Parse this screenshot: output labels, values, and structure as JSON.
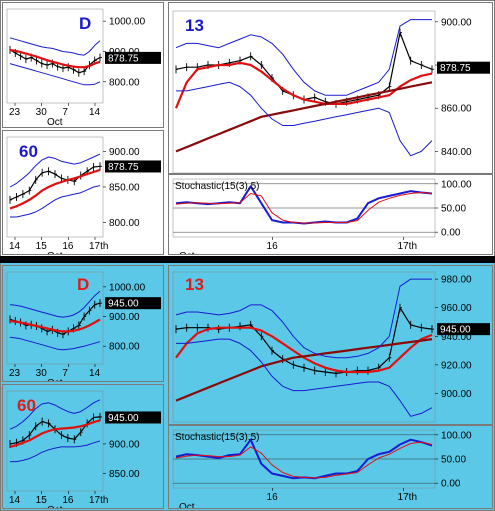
{
  "colors": {
    "top_bg": "#ffffff",
    "bottom_bg": "#5ac8e6",
    "divider": "#000000",
    "title_top": "#1a1acc",
    "title_bottom": "#e41a1a",
    "band": "#1a1ad0",
    "price": "#000000",
    "ma_red": "#e01010",
    "ma_dark": "#8a0a0a",
    "stoch_k": "#1a1ad0",
    "stoch_d": "#e01010"
  },
  "chart_data": [
    {
      "id": "top-daily",
      "type": "line",
      "title": "D",
      "y_ticks": [
        "1000.00",
        "900.00",
        "800.00"
      ],
      "ylim": [
        730,
        1040
      ],
      "x_ticks": [
        "23",
        "30",
        "7",
        "14"
      ],
      "x_sublabel": "Oct",
      "last_value": "878.75",
      "series": [
        {
          "role": "price",
          "values": [
            905,
            895,
            885,
            875,
            880,
            870,
            860,
            855,
            860,
            850,
            845,
            848,
            840,
            830,
            835,
            855,
            870,
            880
          ]
        },
        {
          "role": "ma",
          "values": [
            905,
            902,
            898,
            893,
            888,
            883,
            877,
            871,
            866,
            862,
            857,
            853,
            850,
            848,
            848,
            852,
            860,
            866
          ]
        },
        {
          "role": "band_upper",
          "values": [
            945,
            940,
            935,
            930,
            925,
            920,
            915,
            912,
            910,
            905,
            900,
            898,
            895,
            890,
            888,
            900,
            920,
            935
          ]
        },
        {
          "role": "band_lower",
          "values": [
            860,
            855,
            850,
            845,
            840,
            835,
            830,
            825,
            820,
            815,
            810,
            805,
            800,
            795,
            790,
            790,
            792,
            800
          ]
        }
      ]
    },
    {
      "id": "top-60",
      "type": "line",
      "title": "60",
      "y_ticks": [
        "900.00",
        "850.00",
        "800.00"
      ],
      "ylim": [
        780,
        920
      ],
      "x_ticks": [
        "14",
        "15",
        "16",
        "17th"
      ],
      "x_sublabel": "Oct",
      "last_value": "878.75",
      "series": [
        {
          "role": "price",
          "values": [
            832,
            836,
            840,
            845,
            860,
            870,
            872,
            868,
            862,
            860,
            858,
            866,
            872,
            878,
            879
          ]
        },
        {
          "role": "ma",
          "values": [
            820,
            823,
            827,
            832,
            838,
            845,
            850,
            854,
            857,
            860,
            862,
            865,
            868,
            871,
            874
          ]
        },
        {
          "role": "band_upper",
          "values": [
            850,
            855,
            862,
            870,
            880,
            888,
            892,
            890,
            886,
            884,
            882,
            884,
            888,
            892,
            896
          ]
        },
        {
          "role": "band_lower",
          "values": [
            808,
            808,
            810,
            812,
            815,
            820,
            826,
            832,
            836,
            838,
            840,
            842,
            846,
            850,
            852
          ]
        }
      ]
    },
    {
      "id": "top-13",
      "type": "line",
      "title": "13",
      "y_ticks": [
        "900.00",
        "880.00",
        "860.00",
        "840.00"
      ],
      "ylim": [
        830,
        905
      ],
      "x_ticks": [
        "16",
        "17th"
      ],
      "x_sublabel": "Oct",
      "last_value": "878.75",
      "series": [
        {
          "role": "price",
          "values": [
            878,
            879,
            879,
            880,
            880,
            881,
            882,
            884,
            880,
            874,
            868,
            866,
            864,
            865,
            863,
            862,
            863,
            864,
            865,
            866,
            870,
            895,
            882,
            880,
            878
          ]
        },
        {
          "role": "ma",
          "values": [
            860,
            872,
            878,
            879,
            880,
            880,
            881,
            880,
            877,
            873,
            869,
            866,
            864,
            863,
            862,
            862,
            862,
            863,
            864,
            865,
            866,
            870,
            873,
            875,
            876
          ]
        },
        {
          "role": "ma_long",
          "values": [
            840,
            842,
            844,
            846,
            848,
            850,
            852,
            854,
            856,
            857,
            858,
            859,
            860,
            861,
            862,
            863,
            864,
            865,
            866,
            867,
            868,
            869,
            870,
            871,
            872
          ]
        },
        {
          "role": "band_upper",
          "values": [
            888,
            890,
            890,
            889,
            888,
            890,
            892,
            894,
            893,
            890,
            885,
            878,
            872,
            868,
            866,
            866,
            866,
            868,
            870,
            872,
            878,
            898,
            901,
            901,
            901
          ]
        },
        {
          "role": "band_lower",
          "values": [
            868,
            868,
            869,
            870,
            871,
            872,
            870,
            866,
            860,
            855,
            852,
            852,
            853,
            854,
            855,
            856,
            857,
            858,
            859,
            860,
            858,
            845,
            838,
            840,
            845
          ]
        }
      ]
    },
    {
      "id": "top-stoch",
      "type": "line",
      "title": "Stochastic(15(3),5)",
      "y_ticks": [
        "100.00",
        "50.00",
        "0.00"
      ],
      "ylim": [
        -10,
        110
      ],
      "x_ticks": [
        "16",
        "17th"
      ],
      "x_sublabel": "Oct",
      "series": [
        {
          "role": "stoch_k",
          "values": [
            60,
            62,
            60,
            58,
            60,
            62,
            60,
            95,
            60,
            25,
            20,
            20,
            18,
            20,
            22,
            20,
            20,
            28,
            60,
            70,
            75,
            80,
            85,
            82,
            80
          ]
        },
        {
          "role": "stoch_d",
          "values": [
            58,
            60,
            61,
            60,
            59,
            60,
            61,
            80,
            75,
            40,
            25,
            20,
            19,
            19,
            20,
            20,
            20,
            24,
            45,
            62,
            70,
            76,
            80,
            82,
            80
          ]
        }
      ]
    },
    {
      "id": "bot-daily",
      "type": "line",
      "title": "D",
      "y_ticks": [
        "1000.00",
        "900.00",
        "800.00"
      ],
      "ylim": [
        740,
        1050
      ],
      "x_ticks": [
        "23",
        "30",
        "7",
        "14"
      ],
      "x_sublabel": "Oct",
      "last_value": "945.00",
      "series": [
        {
          "role": "price",
          "values": [
            890,
            885,
            880,
            870,
            872,
            868,
            860,
            850,
            855,
            845,
            840,
            850,
            860,
            870,
            900,
            920,
            940,
            945
          ]
        },
        {
          "role": "ma",
          "values": [
            885,
            883,
            880,
            876,
            872,
            868,
            864,
            860,
            856,
            852,
            850,
            850,
            852,
            856,
            862,
            870,
            880,
            890
          ]
        },
        {
          "role": "band_upper",
          "values": [
            940,
            938,
            935,
            930,
            925,
            920,
            915,
            910,
            905,
            900,
            898,
            900,
            905,
            915,
            930,
            950,
            970,
            985
          ]
        },
        {
          "role": "band_lower",
          "values": [
            830,
            828,
            825,
            820,
            815,
            810,
            805,
            800,
            795,
            790,
            788,
            790,
            792,
            796,
            800,
            805,
            810,
            815
          ]
        }
      ]
    },
    {
      "id": "bot-60",
      "type": "line",
      "title": "60",
      "y_ticks": [
        "900.00",
        "850.00"
      ],
      "ylim": [
        820,
        990
      ],
      "x_ticks": [
        "14",
        "15",
        "16",
        "17th"
      ],
      "x_sublabel": "Oct",
      "last_value": "945.00",
      "series": [
        {
          "role": "price",
          "values": [
            900,
            902,
            906,
            915,
            930,
            938,
            935,
            925,
            915,
            910,
            908,
            920,
            935,
            945,
            946
          ]
        },
        {
          "role": "ma",
          "values": [
            895,
            898,
            902,
            906,
            912,
            918,
            922,
            925,
            926,
            927,
            928,
            930,
            933,
            937,
            940
          ]
        },
        {
          "role": "band_upper",
          "values": [
            925,
            930,
            938,
            948,
            960,
            968,
            970,
            966,
            960,
            955,
            952,
            955,
            962,
            970,
            975
          ]
        },
        {
          "role": "band_lower",
          "values": [
            870,
            870,
            872,
            875,
            880,
            886,
            890,
            893,
            895,
            895,
            895,
            896,
            898,
            902,
            905
          ]
        }
      ]
    },
    {
      "id": "bot-13",
      "type": "line",
      "title": "13",
      "y_ticks": [
        "980.00",
        "960.00",
        "940.00",
        "920.00",
        "900.00"
      ],
      "ylim": [
        880,
        985
      ],
      "x_ticks": [
        "16",
        "17th"
      ],
      "x_sublabel": "Oct",
      "last_value": "945.00",
      "series": [
        {
          "role": "price",
          "values": [
            945,
            946,
            946,
            946,
            945,
            946,
            947,
            948,
            940,
            930,
            924,
            920,
            918,
            916,
            915,
            914,
            915,
            916,
            916,
            918,
            925,
            960,
            948,
            946,
            945
          ]
        },
        {
          "role": "ma",
          "values": [
            925,
            935,
            942,
            945,
            946,
            946,
            946,
            946,
            944,
            940,
            935,
            930,
            925,
            921,
            918,
            916,
            915,
            915,
            915,
            916,
            918,
            925,
            932,
            938,
            941
          ]
        },
        {
          "role": "ma_long",
          "values": [
            895,
            898,
            901,
            904,
            907,
            910,
            913,
            916,
            919,
            921,
            923,
            925,
            926,
            927,
            928,
            929,
            930,
            931,
            932,
            933,
            934,
            935,
            936,
            937,
            938
          ]
        },
        {
          "role": "band_upper",
          "values": [
            955,
            957,
            957,
            956,
            955,
            956,
            958,
            962,
            962,
            958,
            950,
            940,
            932,
            928,
            926,
            925,
            925,
            926,
            928,
            932,
            940,
            975,
            980,
            980,
            980
          ]
        },
        {
          "role": "band_lower",
          "values": [
            935,
            935,
            936,
            937,
            938,
            938,
            935,
            930,
            922,
            912,
            905,
            902,
            902,
            903,
            904,
            905,
            906,
            907,
            908,
            908,
            905,
            895,
            884,
            886,
            890
          ]
        }
      ]
    },
    {
      "id": "bot-stoch",
      "type": "line",
      "title": "Stochastic(15(3),5)",
      "y_ticks": [
        "100.00",
        "50.00",
        "0.00"
      ],
      "ylim": [
        -10,
        110
      ],
      "x_ticks": [
        "16",
        "17th"
      ],
      "x_sublabel": "Oct",
      "series": [
        {
          "role": "stoch_k",
          "values": [
            55,
            60,
            58,
            55,
            52,
            58,
            60,
            90,
            40,
            20,
            15,
            10,
            12,
            10,
            15,
            20,
            20,
            25,
            50,
            60,
            65,
            80,
            90,
            85,
            78
          ]
        },
        {
          "role": "stoch_d",
          "values": [
            52,
            56,
            58,
            57,
            55,
            55,
            58,
            75,
            62,
            38,
            22,
            14,
            12,
            11,
            12,
            16,
            19,
            22,
            38,
            52,
            60,
            72,
            82,
            85,
            80
          ]
        }
      ]
    }
  ]
}
